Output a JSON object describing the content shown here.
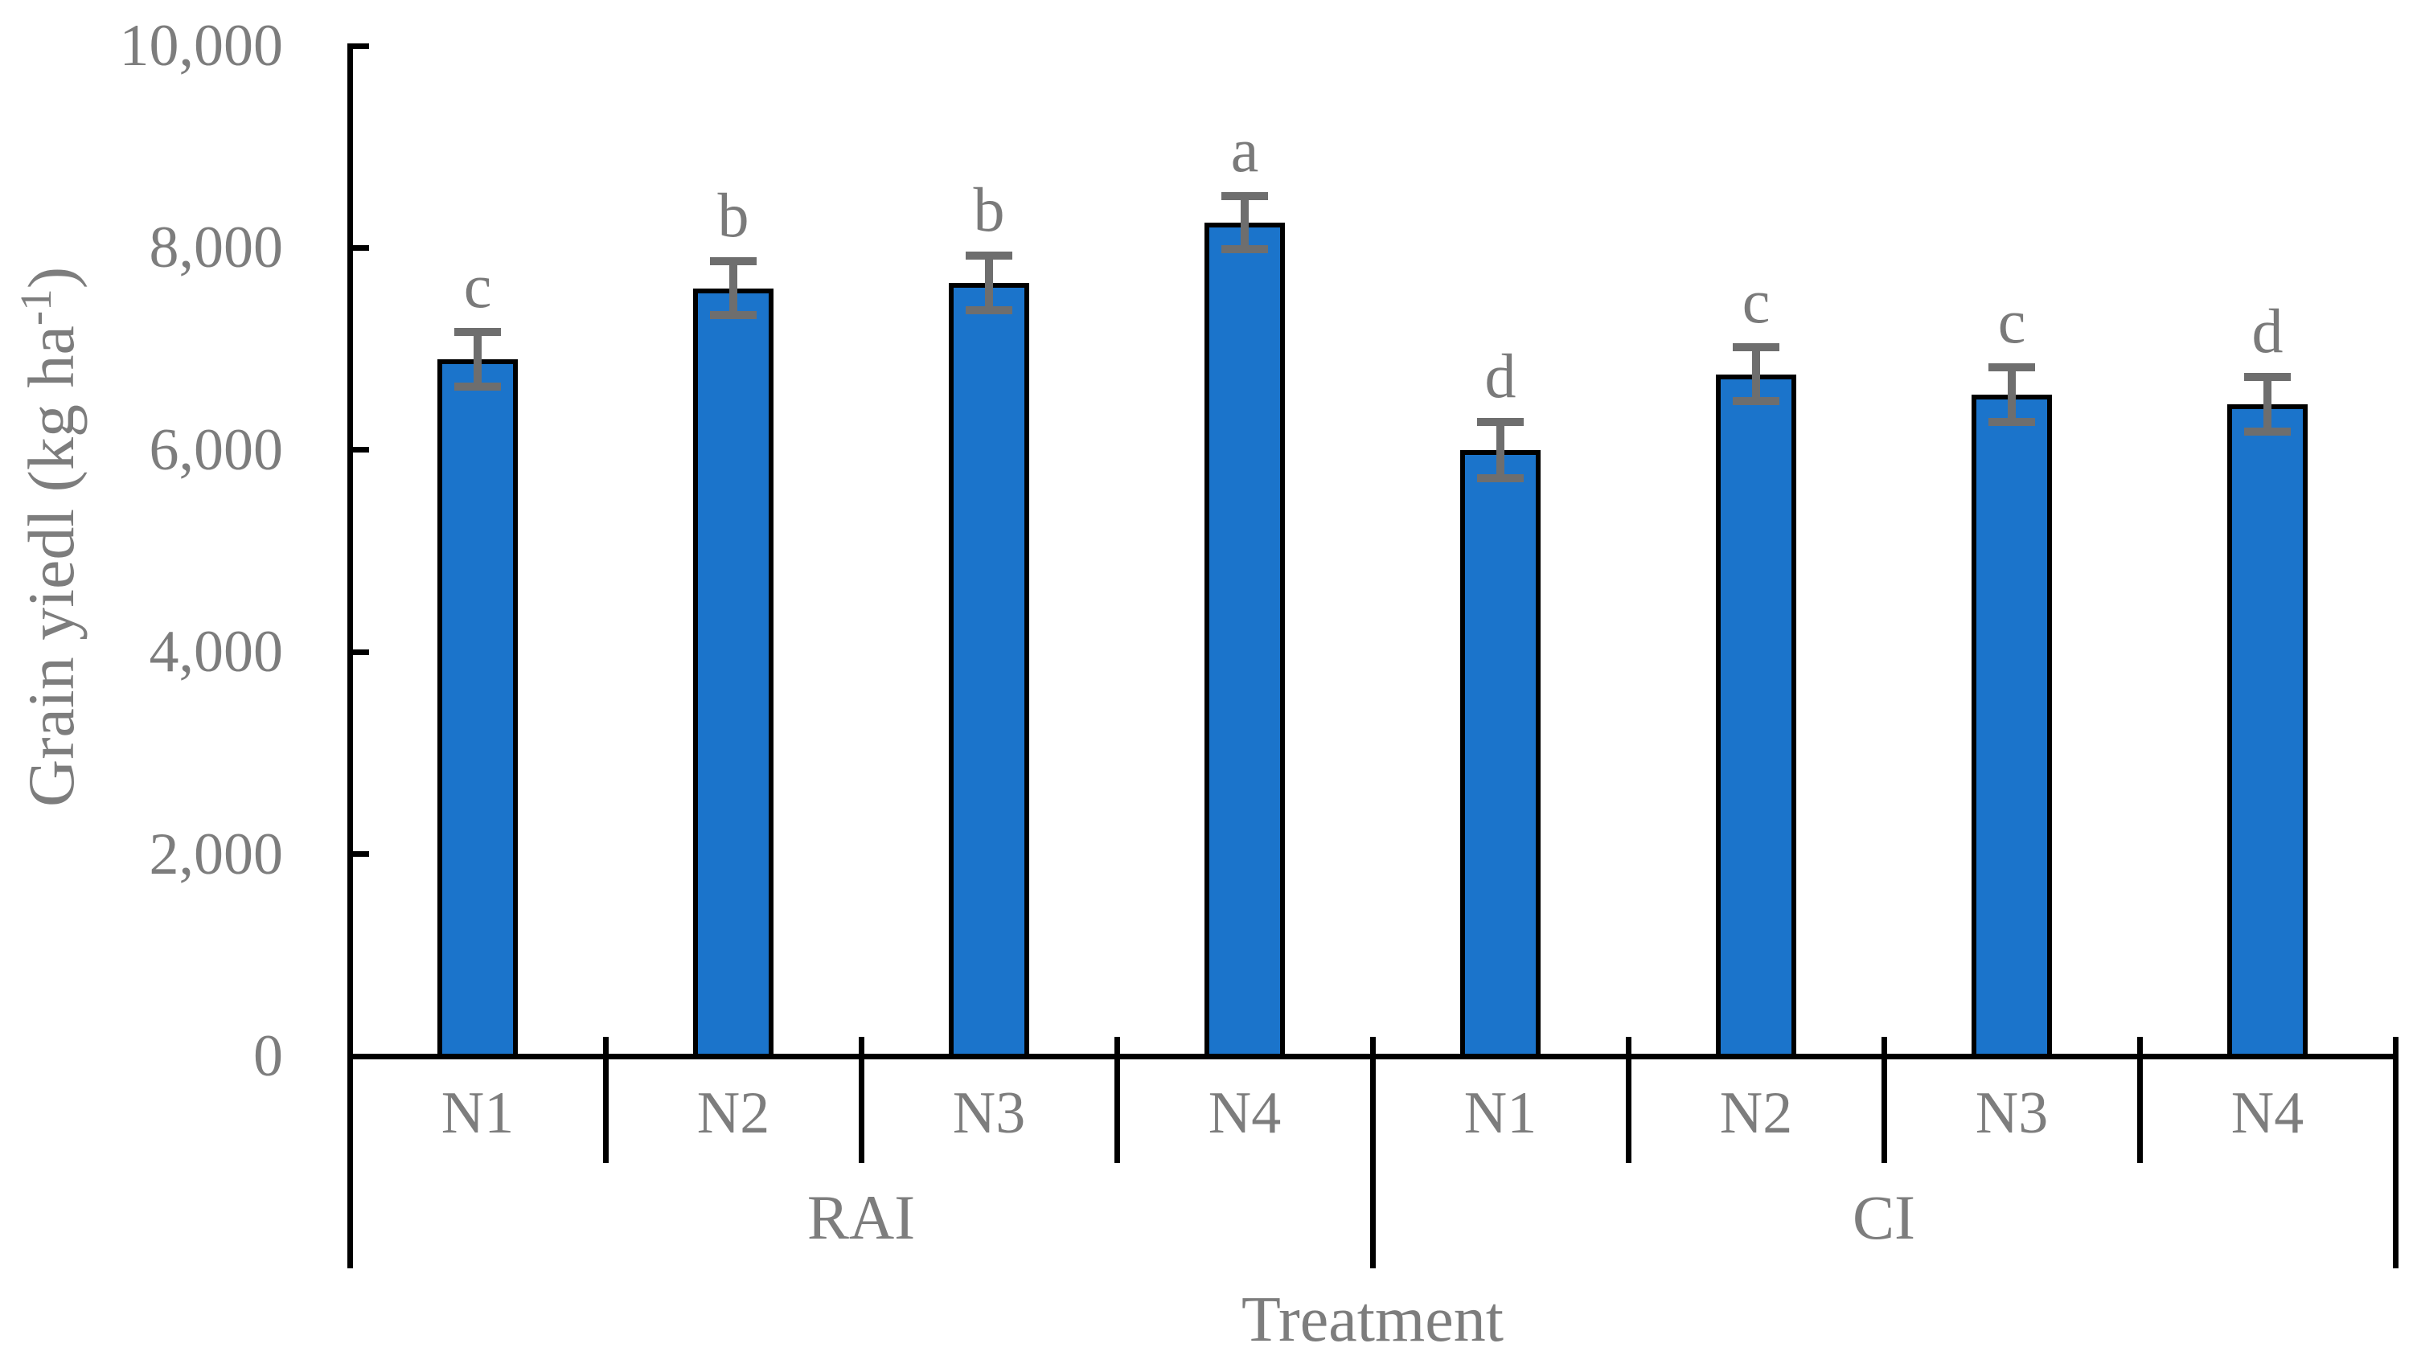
{
  "chart_data": {
    "type": "bar",
    "title": "",
    "xlabel": "Treatment",
    "ylabel": {
      "text": "Grain yiedl (kg ha",
      "sup": "-1",
      "close": ")"
    },
    "ylim": [
      0,
      10000
    ],
    "ytick_values": [
      0,
      2000,
      4000,
      6000,
      8000,
      10000
    ],
    "ytick_labels": [
      "0",
      "2,000",
      "4,000",
      "6,000",
      "8,000",
      "10,000"
    ],
    "groups": [
      {
        "label": "RAI",
        "categories": [
          "N1",
          "N2",
          "N3",
          "N4"
        ]
      },
      {
        "label": "CI",
        "categories": [
          "N1",
          "N2",
          "N3",
          "N4"
        ]
      }
    ],
    "series": [
      {
        "values": [
          6900,
          7600,
          7650,
          8250,
          6000,
          6750,
          6550,
          6450
        ],
        "errors": [
          270,
          265,
          270,
          260,
          280,
          265,
          270,
          270
        ],
        "letters": [
          "c",
          "b",
          "b",
          "a",
          "d",
          "c",
          "c",
          "d"
        ]
      }
    ],
    "legend": false,
    "grid": false,
    "bar_color": "#1b74cb",
    "bar_border_color": "#000000",
    "error_bar_color": "#6e6e6e",
    "text_color": "#7d7d7d",
    "axis_color": "#000000"
  }
}
